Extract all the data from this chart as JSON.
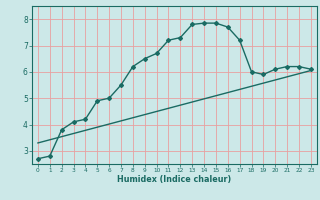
{
  "title": "",
  "xlabel": "Humidex (Indice chaleur)",
  "background_color": "#cce8e8",
  "grid_color": "#e8a0a0",
  "line_color": "#1a6b63",
  "x_curve": [
    0,
    1,
    2,
    3,
    4,
    5,
    6,
    7,
    8,
    9,
    10,
    11,
    12,
    13,
    14,
    15,
    16,
    17,
    18,
    19,
    20,
    21,
    22,
    23
  ],
  "y_curve": [
    2.7,
    2.8,
    3.8,
    4.1,
    4.2,
    4.9,
    5.0,
    5.5,
    6.2,
    6.5,
    6.7,
    7.2,
    7.3,
    7.8,
    7.85,
    7.85,
    7.7,
    7.2,
    6.0,
    5.9,
    6.1,
    6.2,
    6.2,
    6.1
  ],
  "y_linear_start": 3.3,
  "y_linear_end": 6.05,
  "ylim": [
    2.5,
    8.5
  ],
  "xlim": [
    -0.5,
    23.5
  ],
  "yticks": [
    3,
    4,
    5,
    6,
    7,
    8
  ],
  "xticks": [
    0,
    1,
    2,
    3,
    4,
    5,
    6,
    7,
    8,
    9,
    10,
    11,
    12,
    13,
    14,
    15,
    16,
    17,
    18,
    19,
    20,
    21,
    22,
    23
  ]
}
